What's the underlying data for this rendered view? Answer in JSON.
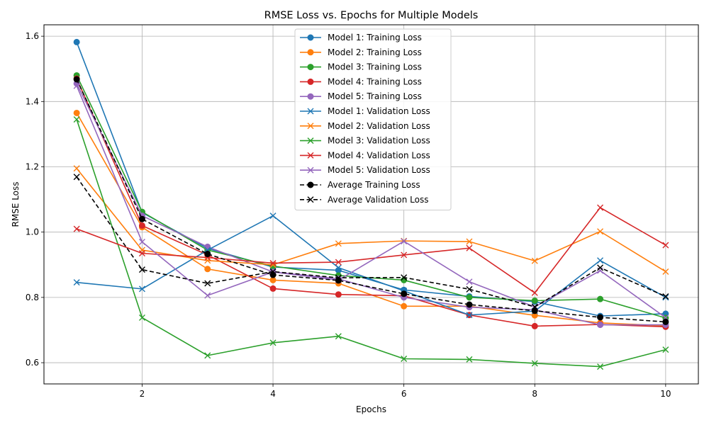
{
  "chart_data": {
    "type": "line",
    "title": "RMSE Loss vs. Epochs for Multiple Models",
    "xlabel": "Epochs",
    "ylabel": "RMSE Loss",
    "x": [
      1,
      2,
      3,
      4,
      5,
      6,
      7,
      8,
      9,
      10
    ],
    "xlim": [
      0.5,
      10.5
    ],
    "ylim": [
      0.535,
      1.635
    ],
    "xticks": [
      2,
      4,
      6,
      8,
      10
    ],
    "yticks": [
      0.6,
      0.8,
      1.0,
      1.2,
      1.4,
      1.6
    ],
    "ytick_labels": [
      "0.6",
      "0.8",
      "1.0",
      "1.2",
      "1.4",
      "1.6"
    ],
    "grid": true,
    "legend_position": "top-center",
    "series": [
      {
        "name": "Model 1: Training Loss",
        "color": "#1f77b4",
        "marker": "circle",
        "dash": "solid",
        "values": [
          1.582,
          1.06,
          0.95,
          0.893,
          0.883,
          0.823,
          0.803,
          0.787,
          0.743,
          0.75
        ]
      },
      {
        "name": "Model 2: Training Loss",
        "color": "#ff7f0e",
        "marker": "circle",
        "dash": "solid",
        "values": [
          1.365,
          1.015,
          0.887,
          0.853,
          0.843,
          0.773,
          0.773,
          0.745,
          0.722,
          0.713
        ]
      },
      {
        "name": "Model 3: Training Loss",
        "color": "#2ca02c",
        "marker": "circle",
        "dash": "solid",
        "values": [
          1.48,
          1.062,
          0.945,
          0.896,
          0.867,
          0.853,
          0.8,
          0.79,
          0.795,
          0.737
        ]
      },
      {
        "name": "Model 4: Training Loss",
        "color": "#d62728",
        "marker": "circle",
        "dash": "solid",
        "values": [
          1.47,
          1.02,
          0.93,
          0.827,
          0.809,
          0.805,
          0.746,
          0.712,
          0.717,
          0.71
        ]
      },
      {
        "name": "Model 5: Training Loss",
        "color": "#9467bd",
        "marker": "circle",
        "dash": "solid",
        "values": [
          1.455,
          1.05,
          0.955,
          0.878,
          0.857,
          0.8,
          0.77,
          0.762,
          0.716,
          0.716
        ]
      },
      {
        "name": "Model 1: Validation Loss",
        "color": "#1f77b4",
        "marker": "x",
        "dash": "solid",
        "values": [
          0.846,
          0.826,
          0.945,
          1.05,
          0.891,
          0.82,
          0.746,
          0.758,
          0.913,
          0.8
        ]
      },
      {
        "name": "Model 2: Validation Loss",
        "color": "#ff7f0e",
        "marker": "x",
        "dash": "solid",
        "values": [
          1.195,
          0.945,
          0.913,
          0.9,
          0.965,
          0.973,
          0.971,
          0.912,
          1.002,
          0.879
        ]
      },
      {
        "name": "Model 3: Validation Loss",
        "color": "#2ca02c",
        "marker": "x",
        "dash": "solid",
        "values": [
          1.345,
          0.738,
          0.622,
          0.661,
          0.681,
          0.612,
          0.61,
          0.598,
          0.588,
          0.64
        ]
      },
      {
        "name": "Model 4: Validation Loss",
        "color": "#d62728",
        "marker": "x",
        "dash": "solid",
        "values": [
          1.01,
          0.935,
          0.922,
          0.905,
          0.908,
          0.93,
          0.951,
          0.814,
          1.075,
          0.96
        ]
      },
      {
        "name": "Model 5: Validation Loss",
        "color": "#9467bd",
        "marker": "x",
        "dash": "solid",
        "values": [
          1.448,
          0.97,
          0.806,
          0.878,
          0.853,
          0.972,
          0.848,
          0.771,
          0.882,
          0.738
        ]
      },
      {
        "name": "Average Training Loss",
        "color": "#000000",
        "marker": "circle",
        "dash": "dashed",
        "values": [
          1.468,
          1.04,
          0.933,
          0.869,
          0.852,
          0.811,
          0.778,
          0.759,
          0.739,
          0.725
        ]
      },
      {
        "name": "Average Validation Loss",
        "color": "#000000",
        "marker": "x",
        "dash": "dashed",
        "values": [
          1.169,
          0.885,
          0.843,
          0.879,
          0.86,
          0.861,
          0.825,
          0.771,
          0.891,
          0.803
        ]
      }
    ]
  }
}
